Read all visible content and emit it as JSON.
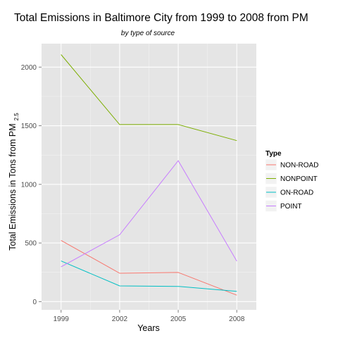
{
  "chart_data": {
    "type": "line",
    "title": "Total Emissions in Baltimore City from 1999 to 2008 from PM",
    "subtitle": "by type of source",
    "xlabel": "Years",
    "ylabel_main": "Total Emissions in Tons from PM",
    "ylabel_sub": "2.5",
    "x": [
      1999,
      2002,
      2005,
      2008
    ],
    "xlim": [
      1998,
      2009
    ],
    "ylim": [
      -70,
      2200
    ],
    "yticks": [
      0,
      500,
      1000,
      1500,
      2000
    ],
    "grid": true,
    "legend_title": "Type",
    "legend_position": "right",
    "series": [
      {
        "name": "NON-ROAD",
        "color": "#F8766D",
        "values": [
          522,
          242,
          249,
          55
        ]
      },
      {
        "name": "NONPOINT",
        "color": "#7CAE00",
        "values": [
          2107,
          1510,
          1510,
          1373
        ]
      },
      {
        "name": "ON-ROAD",
        "color": "#00BFC4",
        "values": [
          347,
          134,
          130,
          88
        ]
      },
      {
        "name": "POINT",
        "color": "#C77CFF",
        "values": [
          297,
          570,
          1202,
          345
        ]
      }
    ]
  }
}
